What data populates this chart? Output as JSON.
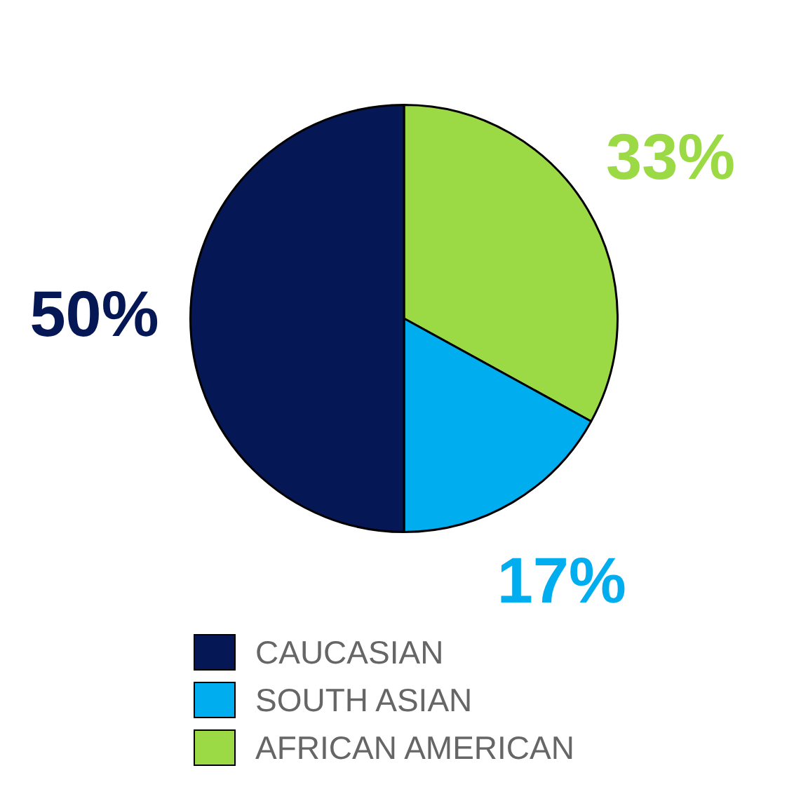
{
  "chart_data": {
    "type": "pie",
    "categories": [
      "CAUCASIAN",
      "SOUTH ASIAN",
      "AFRICAN AMERICAN"
    ],
    "values": [
      50,
      17,
      33
    ],
    "colors": [
      "#061756",
      "#00adef",
      "#9bda45"
    ],
    "value_labels": [
      "50%",
      "17%",
      "33%"
    ],
    "legend": "bottom"
  }
}
